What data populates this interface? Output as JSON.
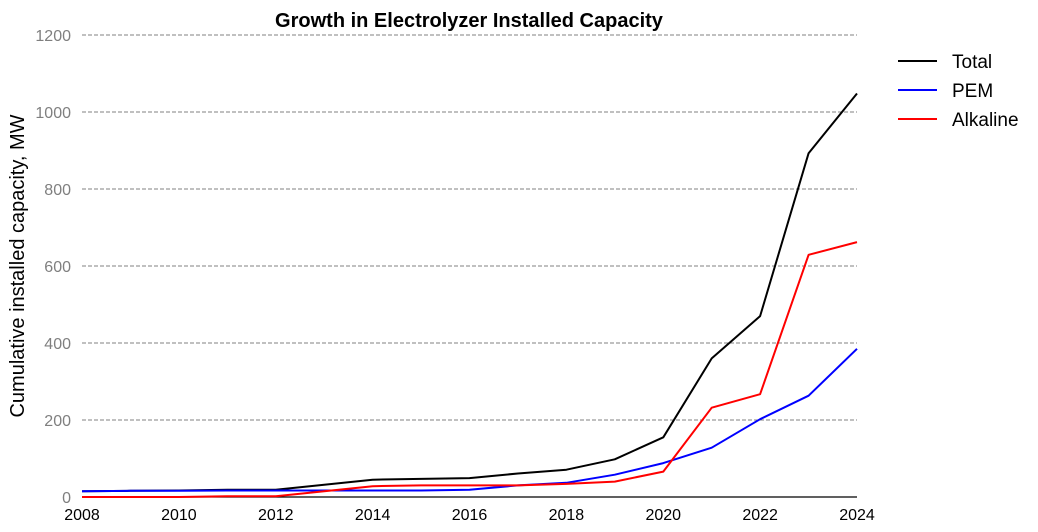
{
  "chart_data": {
    "type": "line",
    "title": "Growth in Electrolyzer Installed Capacity",
    "xlabel": "",
    "ylabel": "Cumulative installed capacity, MW",
    "xlim": [
      2008,
      2024
    ],
    "ylim": [
      0,
      1200
    ],
    "x_ticks": [
      2008,
      2010,
      2012,
      2014,
      2016,
      2018,
      2020,
      2022,
      2024
    ],
    "y_ticks": [
      0,
      200,
      400,
      600,
      800,
      1000,
      1200
    ],
    "grid": "horizontal dashed",
    "legend_position": "top-right (outside plot)",
    "x": [
      2008,
      2009,
      2010,
      2011,
      2012,
      2013,
      2014,
      2015,
      2016,
      2017,
      2018,
      2019,
      2020,
      2021,
      2022,
      2023,
      2024
    ],
    "series": [
      {
        "name": "Total",
        "color": "#000000",
        "values": [
          15,
          16,
          17,
          19,
          19,
          32,
          45,
          47,
          49,
          61,
          71,
          98,
          155,
          360,
          470,
          893,
          1048
        ]
      },
      {
        "name": "PEM",
        "color": "#0000ff",
        "values": [
          15,
          16,
          16,
          17,
          17,
          17,
          17,
          17,
          19,
          30,
          37,
          58,
          88,
          128,
          202,
          263,
          385
        ]
      },
      {
        "name": "Alkaline",
        "color": "#ff0000",
        "values": [
          0,
          0,
          0,
          2,
          2,
          15,
          28,
          30,
          30,
          30,
          34,
          40,
          66,
          232,
          267,
          629,
          662
        ]
      }
    ]
  }
}
